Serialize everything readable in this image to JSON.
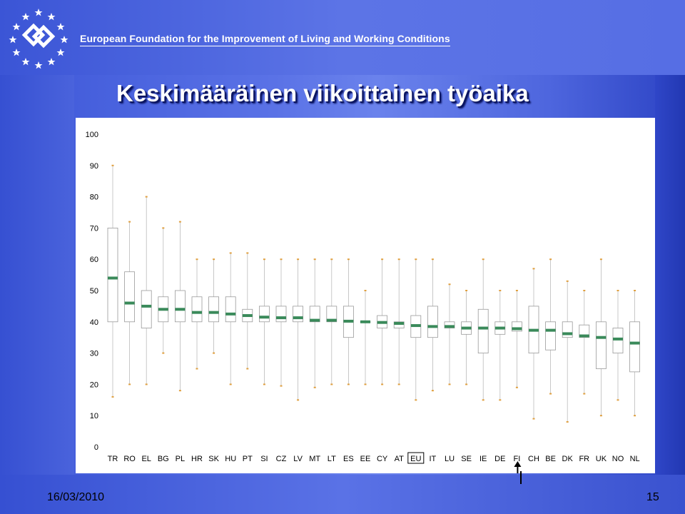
{
  "header": {
    "org_name": "European Foundation for the Improvement of Living and Working Conditions"
  },
  "slide": {
    "title": "Keskimääräinen viikoittainen työaika"
  },
  "footer": {
    "date": "16/03/2010",
    "page": "15"
  },
  "colors": {
    "median": "#3a8a5a",
    "whisker": "#e0a040",
    "box": "#999999"
  },
  "chart_data": {
    "type": "boxplot",
    "ylim": [
      0,
      100
    ],
    "yticks": [
      0,
      10,
      20,
      30,
      40,
      50,
      60,
      70,
      80,
      90,
      100
    ],
    "highlighted_category": "EU",
    "arrow_category": "FI",
    "categories": [
      "TR",
      "RO",
      "EL",
      "BG",
      "PL",
      "HR",
      "SK",
      "HU",
      "PT",
      "SI",
      "CZ",
      "LV",
      "MT",
      "LT",
      "ES",
      "EE",
      "CY",
      "AT",
      "EU",
      "IT",
      "LU",
      "SE",
      "IE",
      "DE",
      "FI",
      "CH",
      "BE",
      "DK",
      "FR",
      "UK",
      "NO",
      "NL"
    ],
    "series": [
      {
        "category": "TR",
        "min": 16,
        "q1": 40,
        "median": 54,
        "q3": 70,
        "max": 90
      },
      {
        "category": "RO",
        "min": 20,
        "q1": 40,
        "median": 46,
        "q3": 56,
        "max": 72
      },
      {
        "category": "EL",
        "min": 20,
        "q1": 38,
        "median": 45,
        "q3": 50,
        "max": 80
      },
      {
        "category": "BG",
        "min": 30,
        "q1": 40,
        "median": 44,
        "q3": 48,
        "max": 70
      },
      {
        "category": "PL",
        "min": 18,
        "q1": 40,
        "median": 44,
        "q3": 50,
        "max": 72
      },
      {
        "category": "HR",
        "min": 25,
        "q1": 40,
        "median": 43,
        "q3": 48,
        "max": 60
      },
      {
        "category": "SK",
        "min": 30,
        "q1": 40,
        "median": 43,
        "q3": 48,
        "max": 60
      },
      {
        "category": "HU",
        "min": 20,
        "q1": 40,
        "median": 42.5,
        "q3": 48,
        "max": 62
      },
      {
        "category": "PT",
        "min": 25,
        "q1": 40,
        "median": 42,
        "q3": 44,
        "max": 62
      },
      {
        "category": "SI",
        "min": 20,
        "q1": 40,
        "median": 41.5,
        "q3": 45,
        "max": 60
      },
      {
        "category": "CZ",
        "min": 19.5,
        "q1": 40,
        "median": 41.3,
        "q3": 45,
        "max": 60
      },
      {
        "category": "LV",
        "min": 15,
        "q1": 40,
        "median": 41.3,
        "q3": 45,
        "max": 60
      },
      {
        "category": "MT",
        "min": 19,
        "q1": 40,
        "median": 40.5,
        "q3": 45,
        "max": 60
      },
      {
        "category": "LT",
        "min": 20,
        "q1": 40,
        "median": 40.5,
        "q3": 45,
        "max": 60
      },
      {
        "category": "ES",
        "min": 20,
        "q1": 35,
        "median": 40.2,
        "q3": 45,
        "max": 60
      },
      {
        "category": "EE",
        "min": 20,
        "q1": 40,
        "median": 40,
        "q3": 40,
        "max": 50
      },
      {
        "category": "CY",
        "min": 20,
        "q1": 38,
        "median": 39.8,
        "q3": 42,
        "max": 60
      },
      {
        "category": "AT",
        "min": 20,
        "q1": 38,
        "median": 39.5,
        "q3": 40,
        "max": 60
      },
      {
        "category": "EU",
        "min": 15,
        "q1": 35,
        "median": 38.8,
        "q3": 42,
        "max": 60
      },
      {
        "category": "IT",
        "min": 18,
        "q1": 35,
        "median": 38.5,
        "q3": 45,
        "max": 60
      },
      {
        "category": "LU",
        "min": 20,
        "q1": 38,
        "median": 38.5,
        "q3": 40,
        "max": 52
      },
      {
        "category": "SE",
        "min": 20,
        "q1": 36,
        "median": 38,
        "q3": 40,
        "max": 50
      },
      {
        "category": "IE",
        "min": 15,
        "q1": 30,
        "median": 38,
        "q3": 44,
        "max": 60
      },
      {
        "category": "DE",
        "min": 15,
        "q1": 36,
        "median": 38,
        "q3": 40,
        "max": 50
      },
      {
        "category": "FI",
        "min": 19,
        "q1": 37,
        "median": 37.8,
        "q3": 40,
        "max": 50
      },
      {
        "category": "CH",
        "min": 9,
        "q1": 30,
        "median": 37.3,
        "q3": 45,
        "max": 57
      },
      {
        "category": "BE",
        "min": 17,
        "q1": 31,
        "median": 37.3,
        "q3": 40,
        "max": 60
      },
      {
        "category": "DK",
        "min": 8,
        "q1": 35,
        "median": 36.2,
        "q3": 40,
        "max": 53
      },
      {
        "category": "FR",
        "min": 17,
        "q1": 35,
        "median": 35.5,
        "q3": 39,
        "max": 50
      },
      {
        "category": "UK",
        "min": 10,
        "q1": 25,
        "median": 35,
        "q3": 40,
        "max": 60
      },
      {
        "category": "NO",
        "min": 15,
        "q1": 30,
        "median": 34.5,
        "q3": 38,
        "max": 50
      },
      {
        "category": "NL",
        "min": 10,
        "q1": 24,
        "median": 33.2,
        "q3": 40,
        "max": 50
      }
    ]
  }
}
